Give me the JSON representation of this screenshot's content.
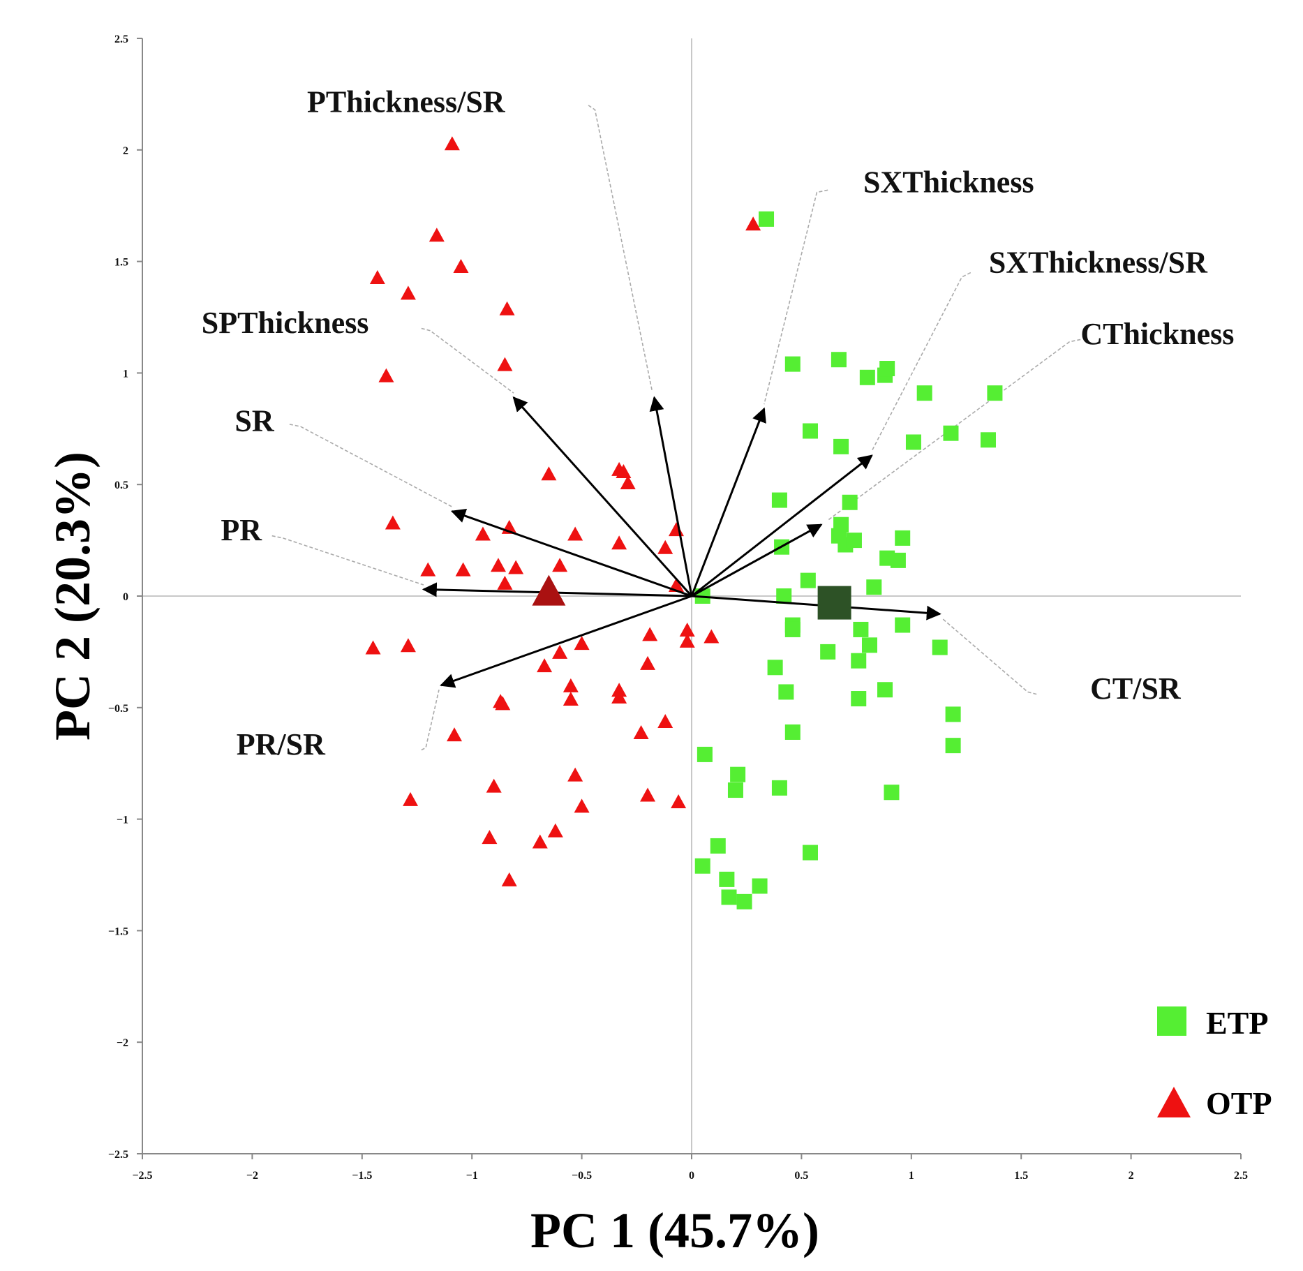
{
  "chart_data": {
    "type": "scatter",
    "title": "",
    "xlabel": "PC 1 (45.7%)",
    "ylabel": "PC 2 (20.3%)",
    "xlim": [
      -2.5,
      2.5
    ],
    "ylim": [
      -2.5,
      2.5
    ],
    "xticks": [
      -2.5,
      -2,
      -1.5,
      -1,
      -0.5,
      0,
      0.5,
      1,
      1.5,
      2,
      2.5
    ],
    "yticks": [
      -2.5,
      -2,
      -1.5,
      -1,
      -0.5,
      0,
      0.5,
      1,
      1.5,
      2,
      2.5
    ],
    "xtick_labels": [
      "−2.5",
      "−2",
      "−1.5",
      "−1",
      "−0.5",
      "0",
      "0.5",
      "1",
      "1.5",
      "2",
      "2.5"
    ],
    "ytick_labels": [
      "−2.5",
      "−2",
      "−1.5",
      "−1",
      "−0.5",
      "0",
      "0.5",
      "1",
      "1.5",
      "2",
      "2.5"
    ],
    "grid": false,
    "legend_position": "bottom-right",
    "series": [
      {
        "name": "ETP",
        "marker": "square",
        "color": "#55ee33",
        "points": [
          [
            0.34,
            1.69
          ],
          [
            0.46,
            1.04
          ],
          [
            0.67,
            1.06
          ],
          [
            0.8,
            0.98
          ],
          [
            0.88,
            0.99
          ],
          [
            0.89,
            1.02
          ],
          [
            1.06,
            0.91
          ],
          [
            1.38,
            0.91
          ],
          [
            0.54,
            0.74
          ],
          [
            0.68,
            0.67
          ],
          [
            1.01,
            0.69
          ],
          [
            1.18,
            0.73
          ],
          [
            1.35,
            0.7
          ],
          [
            0.4,
            0.43
          ],
          [
            0.72,
            0.42
          ],
          [
            0.68,
            0.32
          ],
          [
            0.67,
            0.27
          ],
          [
            0.7,
            0.23
          ],
          [
            0.74,
            0.25
          ],
          [
            0.96,
            0.26
          ],
          [
            0.41,
            0.22
          ],
          [
            0.89,
            0.17
          ],
          [
            0.94,
            0.16
          ],
          [
            0.53,
            0.07
          ],
          [
            0.83,
            0.04
          ],
          [
            0.42,
            0.0
          ],
          [
            0.05,
            0.0
          ],
          [
            0.46,
            -0.13
          ],
          [
            0.46,
            -0.15
          ],
          [
            0.77,
            -0.15
          ],
          [
            0.81,
            -0.22
          ],
          [
            0.96,
            -0.13
          ],
          [
            1.13,
            -0.23
          ],
          [
            0.62,
            -0.25
          ],
          [
            0.76,
            -0.29
          ],
          [
            0.38,
            -0.32
          ],
          [
            0.43,
            -0.43
          ],
          [
            0.76,
            -0.46
          ],
          [
            0.88,
            -0.42
          ],
          [
            1.19,
            -0.53
          ],
          [
            0.46,
            -0.61
          ],
          [
            1.19,
            -0.67
          ],
          [
            0.06,
            -0.71
          ],
          [
            0.21,
            -0.8
          ],
          [
            0.2,
            -0.87
          ],
          [
            0.4,
            -0.86
          ],
          [
            0.91,
            -0.88
          ],
          [
            0.12,
            -1.12
          ],
          [
            0.05,
            -1.21
          ],
          [
            0.16,
            -1.27
          ],
          [
            0.54,
            -1.15
          ],
          [
            0.17,
            -1.35
          ],
          [
            0.24,
            -1.37
          ],
          [
            0.31,
            -1.3
          ]
        ]
      },
      {
        "name": "OTP",
        "marker": "triangle",
        "color": "#ee1111",
        "points": [
          [
            -1.09,
            2.03
          ],
          [
            -1.16,
            1.62
          ],
          [
            -1.05,
            1.48
          ],
          [
            -1.43,
            1.43
          ],
          [
            -1.29,
            1.36
          ],
          [
            -0.84,
            1.29
          ],
          [
            -0.85,
            1.04
          ],
          [
            -1.39,
            0.99
          ],
          [
            -0.33,
            0.57
          ],
          [
            -0.31,
            0.56
          ],
          [
            -0.29,
            0.51
          ],
          [
            -0.65,
            0.55
          ],
          [
            -1.36,
            0.33
          ],
          [
            -0.83,
            0.31
          ],
          [
            -0.95,
            0.28
          ],
          [
            -0.53,
            0.28
          ],
          [
            -0.33,
            0.24
          ],
          [
            -0.07,
            0.3
          ],
          [
            -0.12,
            0.22
          ],
          [
            -1.2,
            0.12
          ],
          [
            -1.04,
            0.12
          ],
          [
            -0.88,
            0.14
          ],
          [
            -0.8,
            0.13
          ],
          [
            -0.6,
            0.14
          ],
          [
            -0.85,
            0.06
          ],
          [
            -0.07,
            0.05
          ],
          [
            -1.45,
            -0.23
          ],
          [
            -1.29,
            -0.22
          ],
          [
            -0.6,
            -0.25
          ],
          [
            -0.5,
            -0.21
          ],
          [
            -0.19,
            -0.17
          ],
          [
            -0.02,
            -0.15
          ],
          [
            -0.02,
            -0.2
          ],
          [
            0.09,
            -0.18
          ],
          [
            -0.67,
            -0.31
          ],
          [
            -0.2,
            -0.3
          ],
          [
            -0.55,
            -0.4
          ],
          [
            -0.55,
            -0.46
          ],
          [
            -0.33,
            -0.42
          ],
          [
            -0.33,
            -0.45
          ],
          [
            -0.87,
            -0.47
          ],
          [
            -0.86,
            -0.48
          ],
          [
            -0.12,
            -0.56
          ],
          [
            -0.23,
            -0.61
          ],
          [
            -1.08,
            -0.62
          ],
          [
            -0.9,
            -0.85
          ],
          [
            -0.53,
            -0.8
          ],
          [
            -1.28,
            -0.91
          ],
          [
            -0.2,
            -0.89
          ],
          [
            -0.06,
            -0.92
          ],
          [
            -0.5,
            -0.94
          ],
          [
            -0.92,
            -1.08
          ],
          [
            -0.69,
            -1.1
          ],
          [
            -0.62,
            -1.05
          ],
          [
            -0.83,
            -1.27
          ],
          [
            0.28,
            1.67
          ]
        ]
      }
    ],
    "centroids": [
      {
        "group": "ETP",
        "x": 0.65,
        "y": -0.03,
        "color": "#2d5226"
      },
      {
        "group": "OTP",
        "x": -0.65,
        "y": 0.02,
        "color": "#aa1111"
      }
    ],
    "loadings": [
      {
        "name": "PThickness/SR",
        "x": -0.17,
        "y": 0.89,
        "label_x": -1.3,
        "label_y": 2.17,
        "leader": [
          [
            -0.47,
            2.2
          ],
          [
            -0.44,
            2.18
          ],
          [
            -0.18,
            0.92
          ]
        ]
      },
      {
        "name": "SXThickness",
        "x": 0.33,
        "y": 0.84,
        "label_x": 1.17,
        "label_y": 1.81,
        "leader": [
          [
            0.62,
            1.82
          ],
          [
            0.57,
            1.81
          ],
          [
            0.33,
            0.86
          ]
        ]
      },
      {
        "name": "SXThickness/SR",
        "x": 0.82,
        "y": 0.63,
        "label_x": 1.85,
        "label_y": 1.45,
        "leader": [
          [
            1.27,
            1.45
          ],
          [
            1.23,
            1.43
          ],
          [
            0.82,
            0.65
          ]
        ]
      },
      {
        "name": "CThickness",
        "x": 0.59,
        "y": 0.32,
        "label_x": 2.12,
        "label_y": 1.13,
        "leader": [
          [
            1.77,
            1.15
          ],
          [
            1.72,
            1.14
          ],
          [
            0.62,
            0.34
          ]
        ]
      },
      {
        "name": "SPThickness",
        "x": -0.81,
        "y": 0.89,
        "label_x": -1.85,
        "label_y": 1.18,
        "leader": [
          [
            -1.23,
            1.2
          ],
          [
            -1.19,
            1.19
          ],
          [
            -0.81,
            0.91
          ]
        ]
      },
      {
        "name": "SR",
        "x": -1.09,
        "y": 0.38,
        "label_x": -1.99,
        "label_y": 0.74,
        "leader": [
          [
            -1.83,
            0.77
          ],
          [
            -1.78,
            0.76
          ],
          [
            -1.09,
            0.4
          ]
        ]
      },
      {
        "name": "PR",
        "x": -1.22,
        "y": 0.03,
        "label_x": -2.05,
        "label_y": 0.25,
        "leader": [
          [
            -1.91,
            0.27
          ],
          [
            -1.86,
            0.26
          ],
          [
            -1.22,
            0.05
          ]
        ]
      },
      {
        "name": "PR/SR",
        "x": -1.14,
        "y": -0.4,
        "label_x": -1.87,
        "label_y": -0.71,
        "leader": [
          [
            -1.23,
            -0.69
          ],
          [
            -1.21,
            -0.68
          ],
          [
            -1.15,
            -0.42
          ]
        ]
      },
      {
        "name": "CT/SR",
        "x": 1.13,
        "y": -0.08,
        "label_x": 2.02,
        "label_y": -0.46,
        "leader": [
          [
            1.57,
            -0.44
          ],
          [
            1.53,
            -0.43
          ],
          [
            1.14,
            -0.1
          ]
        ]
      }
    ]
  }
}
